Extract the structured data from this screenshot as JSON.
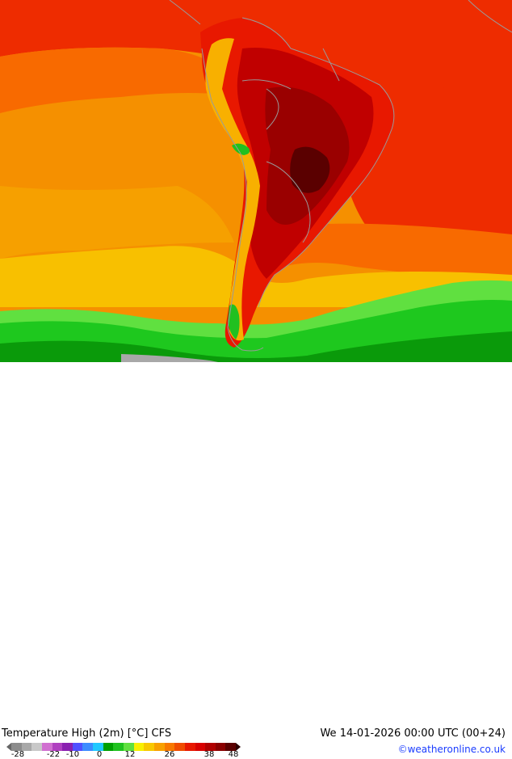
{
  "title": "Temperature High (2m) [°C] CFS",
  "datetime": "We 14-01-2026 00:00 UTC (00+24)",
  "credit": "©weatheronline.co.uk",
  "legend": {
    "ticks": [
      "-28",
      "-22",
      "-10",
      "0",
      "12",
      "26",
      "38",
      "48"
    ],
    "colors": [
      "#8c8c8c",
      "#a8a8a8",
      "#c8c8c8",
      "#d070d0",
      "#b040c0",
      "#8a20b0",
      "#5050ff",
      "#3c8cff",
      "#20c8ff",
      "#00a000",
      "#1fc21f",
      "#60e040",
      "#f8f000",
      "#f8c800",
      "#f8a000",
      "#f87800",
      "#f04c00",
      "#e81800",
      "#d80000",
      "#b00000",
      "#8a0000",
      "#5a0000"
    ]
  },
  "map_colors": {
    "ocean_warm": "#f86a00",
    "ocean_hot": "#ee2c00",
    "ocean_mild": "#f6a000",
    "ocean_cool": "#f8d000",
    "cold_band": "#1ec81e",
    "cold_band_dark": "#0a9a0a",
    "land_hot": "#c00000",
    "land_hotter": "#9a0000",
    "land_hottest": "#5a0000",
    "andes": "#f8b000",
    "borders": "#9a9a9a"
  }
}
